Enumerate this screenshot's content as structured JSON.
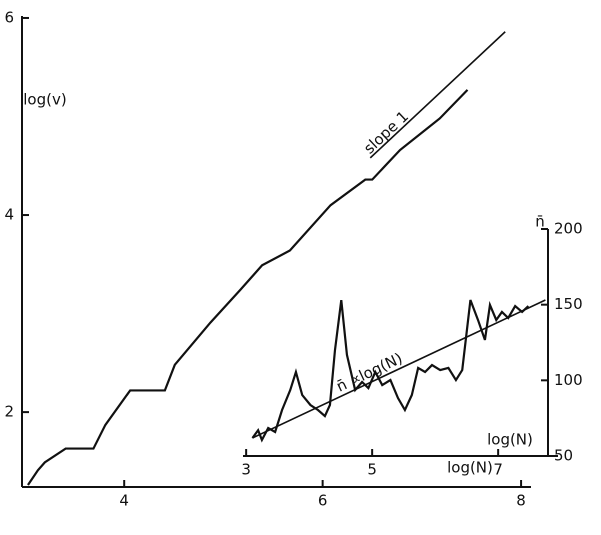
{
  "chart_data": [
    {
      "type": "line",
      "x_label": "log(N)",
      "y_label": "log(v)",
      "xlim": [
        2.97,
        8.1
      ],
      "ylim": [
        1.24,
        6.02
      ],
      "xticks": [
        4,
        6,
        8
      ],
      "yticks": [
        2,
        4,
        6
      ],
      "series": [
        {
          "color": "#111111",
          "x": [
            3.03,
            3.13,
            3.2,
            3.41,
            3.69,
            3.81,
            4.06,
            4.41,
            4.51,
            4.87,
            5.17,
            5.39,
            5.67,
            6.08,
            6.43,
            6.5,
            6.78,
            7.18,
            7.46
          ],
          "values": [
            1.26,
            1.41,
            1.49,
            1.63,
            1.63,
            1.87,
            2.22,
            2.22,
            2.48,
            2.91,
            3.24,
            3.49,
            3.64,
            4.1,
            4.36,
            4.36,
            4.66,
            4.98,
            5.27
          ]
        },
        {
          "name": "slope 1",
          "color": "#111111",
          "x": [
            6.48,
            7.84
          ],
          "values": [
            4.58,
            5.86
          ]
        }
      ]
    },
    {
      "type": "line",
      "x_label": "log(N)",
      "y_label": "n̄",
      "xlim": [
        2.95,
        7.95
      ],
      "ylim": [
        50,
        200
      ],
      "xticks": [
        3,
        5,
        7
      ],
      "yticks": [
        50,
        100,
        150,
        200
      ],
      "series": [
        {
          "color": "#111111",
          "x": [
            3.1,
            3.19,
            3.25,
            3.35,
            3.46,
            3.57,
            3.7,
            3.79,
            3.89,
            4.02,
            4.14,
            4.25,
            4.33,
            4.41,
            4.51,
            4.6,
            4.73,
            4.84,
            4.94,
            5.05,
            5.16,
            5.29,
            5.41,
            5.52,
            5.63,
            5.73,
            5.84,
            5.95,
            6.08,
            6.21,
            6.33,
            6.43,
            6.56,
            6.68,
            6.79,
            6.87,
            6.97,
            7.06,
            7.16,
            7.27,
            7.38,
            7.48
          ],
          "values": [
            61.9,
            67,
            60.6,
            68.5,
            65.9,
            80.4,
            93.6,
            105.5,
            90.3,
            83.7,
            80.4,
            76.4,
            83.7,
            120,
            153,
            116.8,
            93.6,
            98.9,
            94.9,
            105.5,
            96.9,
            100.2,
            88.3,
            80.4,
            90.3,
            108.2,
            105.5,
            110.1,
            106.8,
            108.2,
            100.2,
            106.8,
            153.1,
            139.9,
            126.7,
            149.8,
            139.9,
            145.2,
            141.2,
            149.1,
            145.2,
            149.1
          ]
        },
        {
          "name": "n̄ ∝log(N)",
          "color": "#111111",
          "x": [
            3.1,
            7.75
          ],
          "values": [
            61.9,
            153.1
          ]
        }
      ]
    }
  ]
}
